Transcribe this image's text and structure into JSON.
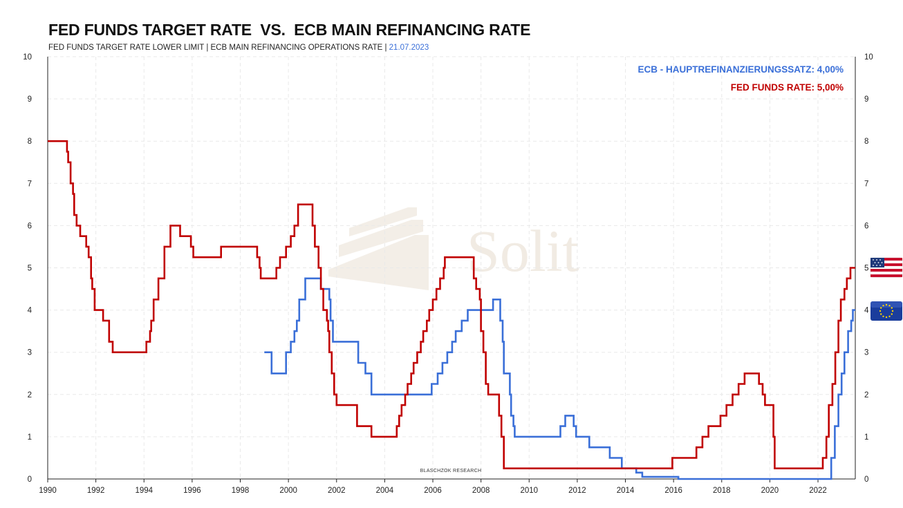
{
  "title": "FED FUNDS TARGET RATE  VS.  ECB MAIN REFINANCING RATE",
  "subtitle_text": "FED FUNDS TARGET RATE LOWER LIMIT | ECB MAIN REFINANCING OPERATIONS RATE | ",
  "subtitle_date": "21.07.2023",
  "watermark": "Solit",
  "credit": "BLASCHZOK  RESEARCH",
  "icons": {
    "us": "us-flag-icon",
    "eu": "eu-flag-icon"
  },
  "chart_data": {
    "type": "line",
    "step": true,
    "x_range": [
      1990,
      2023.55
    ],
    "y_range": [
      0,
      10
    ],
    "x_ticks": [
      1990,
      1992,
      1994,
      1996,
      1998,
      2000,
      2002,
      2004,
      2006,
      2008,
      2010,
      2012,
      2014,
      2016,
      2018,
      2020,
      2022
    ],
    "y_ticks": [
      0,
      1,
      2,
      3,
      4,
      5,
      6,
      7,
      8,
      9,
      10
    ],
    "grid": true,
    "legend_position": "top-right",
    "series": [
      {
        "name": "ECB - HAUPTREFINANZIERUNGSSATZ: 4,00%",
        "color": "#3a6fd8",
        "points": [
          [
            1999.0,
            3.0
          ],
          [
            1999.3,
            2.5
          ],
          [
            1999.9,
            3.0
          ],
          [
            2000.1,
            3.25
          ],
          [
            2000.25,
            3.5
          ],
          [
            2000.35,
            3.75
          ],
          [
            2000.45,
            4.25
          ],
          [
            2000.7,
            4.75
          ],
          [
            2001.35,
            4.5
          ],
          [
            2001.7,
            4.25
          ],
          [
            2001.75,
            3.75
          ],
          [
            2001.85,
            3.25
          ],
          [
            2002.9,
            2.75
          ],
          [
            2003.2,
            2.5
          ],
          [
            2003.45,
            2.0
          ],
          [
            2005.95,
            2.25
          ],
          [
            2006.2,
            2.5
          ],
          [
            2006.4,
            2.75
          ],
          [
            2006.6,
            3.0
          ],
          [
            2006.8,
            3.25
          ],
          [
            2006.95,
            3.5
          ],
          [
            2007.2,
            3.75
          ],
          [
            2007.45,
            4.0
          ],
          [
            2008.5,
            4.25
          ],
          [
            2008.8,
            3.75
          ],
          [
            2008.9,
            3.25
          ],
          [
            2008.95,
            2.5
          ],
          [
            2009.2,
            2.0
          ],
          [
            2009.25,
            1.5
          ],
          [
            2009.35,
            1.25
          ],
          [
            2009.4,
            1.0
          ],
          [
            2011.3,
            1.25
          ],
          [
            2011.5,
            1.5
          ],
          [
            2011.85,
            1.25
          ],
          [
            2011.95,
            1.0
          ],
          [
            2012.5,
            0.75
          ],
          [
            2013.35,
            0.5
          ],
          [
            2013.85,
            0.25
          ],
          [
            2014.45,
            0.15
          ],
          [
            2014.7,
            0.05
          ],
          [
            2016.2,
            0.0
          ],
          [
            2022.55,
            0.5
          ],
          [
            2022.7,
            1.25
          ],
          [
            2022.85,
            2.0
          ],
          [
            2022.98,
            2.5
          ],
          [
            2023.1,
            3.0
          ],
          [
            2023.25,
            3.5
          ],
          [
            2023.38,
            3.75
          ],
          [
            2023.45,
            4.0
          ],
          [
            2023.55,
            4.0
          ]
        ]
      },
      {
        "name": "FED FUNDS RATE: 5,00%",
        "color": "#c00000",
        "points": [
          [
            1990.0,
            8.0
          ],
          [
            1990.8,
            7.75
          ],
          [
            1990.85,
            7.5
          ],
          [
            1990.95,
            7.0
          ],
          [
            1991.05,
            6.75
          ],
          [
            1991.1,
            6.25
          ],
          [
            1991.2,
            6.0
          ],
          [
            1991.35,
            5.75
          ],
          [
            1991.6,
            5.5
          ],
          [
            1991.7,
            5.25
          ],
          [
            1991.8,
            4.75
          ],
          [
            1991.85,
            4.5
          ],
          [
            1991.95,
            4.0
          ],
          [
            1992.3,
            3.75
          ],
          [
            1992.55,
            3.25
          ],
          [
            1992.7,
            3.0
          ],
          [
            1994.1,
            3.25
          ],
          [
            1994.25,
            3.5
          ],
          [
            1994.3,
            3.75
          ],
          [
            1994.4,
            4.25
          ],
          [
            1994.6,
            4.75
          ],
          [
            1994.85,
            5.5
          ],
          [
            1995.1,
            6.0
          ],
          [
            1995.5,
            5.75
          ],
          [
            1995.95,
            5.5
          ],
          [
            1996.05,
            5.25
          ],
          [
            1997.2,
            5.5
          ],
          [
            1998.7,
            5.25
          ],
          [
            1998.8,
            5.0
          ],
          [
            1998.85,
            4.75
          ],
          [
            1999.5,
            5.0
          ],
          [
            1999.65,
            5.25
          ],
          [
            1999.9,
            5.5
          ],
          [
            2000.1,
            5.75
          ],
          [
            2000.25,
            6.0
          ],
          [
            2000.4,
            6.5
          ],
          [
            2001.0,
            6.0
          ],
          [
            2001.1,
            5.5
          ],
          [
            2001.25,
            5.0
          ],
          [
            2001.35,
            4.5
          ],
          [
            2001.45,
            4.0
          ],
          [
            2001.6,
            3.75
          ],
          [
            2001.65,
            3.5
          ],
          [
            2001.7,
            3.0
          ],
          [
            2001.8,
            2.5
          ],
          [
            2001.9,
            2.0
          ],
          [
            2002.0,
            1.75
          ],
          [
            2002.85,
            1.25
          ],
          [
            2003.45,
            1.0
          ],
          [
            2004.5,
            1.25
          ],
          [
            2004.6,
            1.5
          ],
          [
            2004.7,
            1.75
          ],
          [
            2004.85,
            2.0
          ],
          [
            2004.95,
            2.25
          ],
          [
            2005.1,
            2.5
          ],
          [
            2005.2,
            2.75
          ],
          [
            2005.35,
            3.0
          ],
          [
            2005.5,
            3.25
          ],
          [
            2005.6,
            3.5
          ],
          [
            2005.75,
            3.75
          ],
          [
            2005.85,
            4.0
          ],
          [
            2006.0,
            4.25
          ],
          [
            2006.15,
            4.5
          ],
          [
            2006.3,
            4.75
          ],
          [
            2006.45,
            5.0
          ],
          [
            2006.5,
            5.25
          ],
          [
            2007.7,
            4.75
          ],
          [
            2007.8,
            4.5
          ],
          [
            2007.95,
            4.25
          ],
          [
            2008.0,
            3.5
          ],
          [
            2008.1,
            3.0
          ],
          [
            2008.2,
            2.25
          ],
          [
            2008.3,
            2.0
          ],
          [
            2008.75,
            1.5
          ],
          [
            2008.85,
            1.0
          ],
          [
            2008.95,
            0.25
          ],
          [
            2015.95,
            0.5
          ],
          [
            2016.95,
            0.75
          ],
          [
            2017.2,
            1.0
          ],
          [
            2017.45,
            1.25
          ],
          [
            2017.95,
            1.5
          ],
          [
            2018.2,
            1.75
          ],
          [
            2018.45,
            2.0
          ],
          [
            2018.7,
            2.25
          ],
          [
            2018.95,
            2.5
          ],
          [
            2019.55,
            2.25
          ],
          [
            2019.7,
            2.0
          ],
          [
            2019.8,
            1.75
          ],
          [
            2020.15,
            1.0
          ],
          [
            2020.2,
            0.25
          ],
          [
            2022.2,
            0.5
          ],
          [
            2022.35,
            1.0
          ],
          [
            2022.45,
            1.75
          ],
          [
            2022.6,
            2.25
          ],
          [
            2022.72,
            3.0
          ],
          [
            2022.85,
            3.75
          ],
          [
            2022.95,
            4.25
          ],
          [
            2023.1,
            4.5
          ],
          [
            2023.2,
            4.75
          ],
          [
            2023.35,
            5.0
          ],
          [
            2023.55,
            5.0
          ]
        ]
      }
    ]
  }
}
